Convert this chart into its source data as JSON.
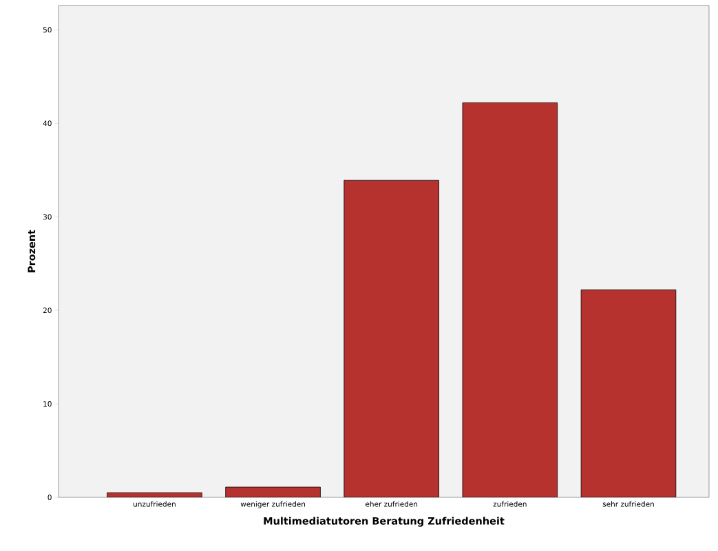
{
  "chart_data": {
    "type": "bar",
    "xlabel": "Multimediatutoren Beratung Zufriedenheit",
    "ylabel": "Prozent",
    "categories": [
      "unzufrieden",
      "weniger zufrieden",
      "eher zufrieden",
      "zufrieden",
      "sehr zufrieden"
    ],
    "values": [
      0.5,
      1.1,
      33.9,
      42.2,
      22.2
    ],
    "color": "#b5322f",
    "ylim": [
      0,
      52.6
    ],
    "yticks": [
      0,
      10,
      20,
      30,
      40,
      50
    ]
  }
}
